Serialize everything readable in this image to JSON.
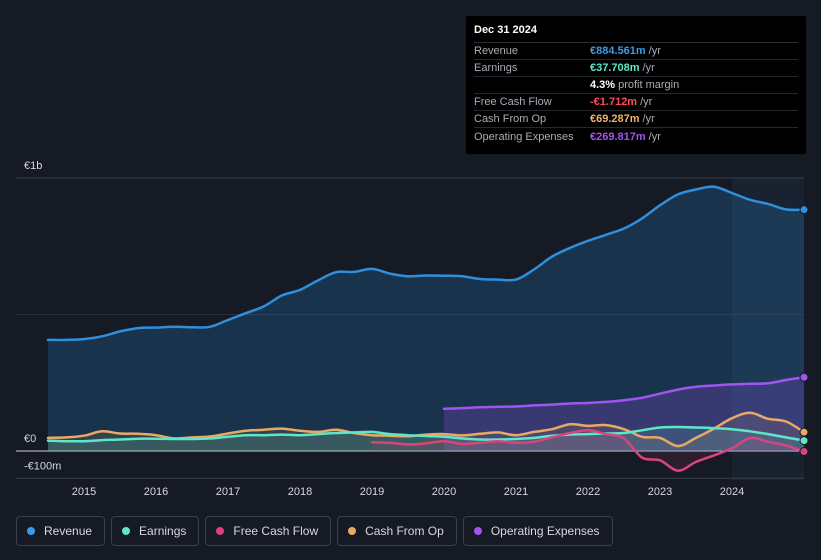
{
  "tooltip": {
    "date": "Dec 31 2024",
    "rows": [
      {
        "label": "Revenue",
        "value": "€884.561m",
        "unit": "/yr",
        "color": "#3b9be6"
      },
      {
        "label": "Earnings",
        "value": "€37.708m",
        "unit": "/yr",
        "color": "#5ee6c8"
      },
      {
        "label": "",
        "value": "4.3%",
        "unit": "profit margin",
        "color": "#ffffff"
      },
      {
        "label": "Free Cash Flow",
        "value": "-€1.712m",
        "unit": "/yr",
        "color": "#ff4a5a"
      },
      {
        "label": "Cash From Op",
        "value": "€69.287m",
        "unit": "/yr",
        "color": "#f0b46c"
      },
      {
        "label": "Operating Expenses",
        "value": "€269.817m",
        "unit": "/yr",
        "color": "#a054f0"
      }
    ]
  },
  "legend": [
    {
      "label": "Revenue",
      "color": "#3b9be6"
    },
    {
      "label": "Earnings",
      "color": "#5ee6c8"
    },
    {
      "label": "Free Cash Flow",
      "color": "#d9447f"
    },
    {
      "label": "Cash From Op",
      "color": "#e8a964"
    },
    {
      "label": "Operating Expenses",
      "color": "#a054f0"
    }
  ],
  "chart_data": {
    "type": "area",
    "title": "",
    "y_tick_labels": [
      "€1b",
      "€0",
      "-€100m"
    ],
    "y_tick_values": [
      1000,
      0,
      -100
    ],
    "ylim": [
      -100,
      1000
    ],
    "xlim": [
      2014.5,
      2025.0
    ],
    "x_ticks": [
      2015,
      2016,
      2017,
      2018,
      2019,
      2020,
      2021,
      2022,
      2023,
      2024
    ],
    "x_tick_labels": [
      "2015",
      "2016",
      "2017",
      "2018",
      "2019",
      "2020",
      "2021",
      "2022",
      "2023",
      "2024"
    ],
    "highlight_from": 2024.0,
    "series": [
      {
        "name": "Revenue",
        "color": "#2f8fdc",
        "x": [
          2014.5,
          2014.75,
          2015.0,
          2015.25,
          2015.5,
          2015.75,
          2016.0,
          2016.25,
          2016.5,
          2016.75,
          2017.0,
          2017.25,
          2017.5,
          2017.75,
          2018.0,
          2018.25,
          2018.5,
          2018.75,
          2019.0,
          2019.25,
          2019.5,
          2019.75,
          2020.0,
          2020.25,
          2020.5,
          2020.75,
          2021.0,
          2021.25,
          2021.5,
          2021.75,
          2022.0,
          2022.25,
          2022.5,
          2022.75,
          2023.0,
          2023.25,
          2023.5,
          2023.75,
          2024.0,
          2024.25,
          2024.5,
          2024.75,
          2025.0
        ],
        "values": [
          407,
          407,
          410,
          420,
          438,
          450,
          452,
          455,
          453,
          455,
          480,
          505,
          530,
          570,
          590,
          625,
          655,
          656,
          667,
          650,
          640,
          643,
          642,
          640,
          630,
          628,
          628,
          665,
          712,
          744,
          770,
          792,
          815,
          852,
          900,
          940,
          958,
          968,
          945,
          920,
          905,
          885,
          884
        ]
      },
      {
        "name": "Operating Expenses",
        "color": "#a054f0",
        "x": [
          2020.0,
          2020.25,
          2020.5,
          2020.75,
          2021.0,
          2021.25,
          2021.5,
          2021.75,
          2022.0,
          2022.25,
          2022.5,
          2022.75,
          2023.0,
          2023.25,
          2023.5,
          2023.75,
          2024.0,
          2024.25,
          2024.5,
          2024.75,
          2025.0
        ],
        "values": [
          155,
          157,
          160,
          162,
          163,
          167,
          170,
          174,
          176,
          180,
          186,
          195,
          210,
          225,
          235,
          240,
          244,
          246,
          248,
          260,
          270
        ]
      },
      {
        "name": "Cash From Op",
        "color": "#e8a964",
        "x": [
          2014.5,
          2014.75,
          2015.0,
          2015.25,
          2015.5,
          2015.75,
          2016.0,
          2016.25,
          2016.5,
          2016.75,
          2017.0,
          2017.25,
          2017.5,
          2017.75,
          2018.0,
          2018.25,
          2018.5,
          2018.75,
          2019.0,
          2019.25,
          2019.5,
          2019.75,
          2020.0,
          2020.25,
          2020.5,
          2020.75,
          2021.0,
          2021.25,
          2021.5,
          2021.75,
          2022.0,
          2022.25,
          2022.5,
          2022.75,
          2023.0,
          2023.25,
          2023.5,
          2023.75,
          2024.0,
          2024.25,
          2024.5,
          2024.75,
          2025.0
        ],
        "values": [
          48,
          50,
          56,
          72,
          64,
          63,
          58,
          46,
          50,
          53,
          64,
          74,
          78,
          82,
          74,
          70,
          78,
          66,
          58,
          56,
          54,
          60,
          62,
          57,
          63,
          68,
          58,
          70,
          80,
          98,
          92,
          95,
          80,
          52,
          48,
          18,
          48,
          82,
          120,
          140,
          118,
          108,
          69
        ]
      },
      {
        "name": "Earnings",
        "color": "#5ee6c8",
        "x": [
          2014.5,
          2014.75,
          2015.0,
          2015.25,
          2015.5,
          2015.75,
          2016.0,
          2016.25,
          2016.5,
          2016.75,
          2017.0,
          2017.25,
          2017.5,
          2017.75,
          2018.0,
          2018.25,
          2018.5,
          2018.75,
          2019.0,
          2019.25,
          2019.5,
          2019.75,
          2020.0,
          2020.25,
          2020.5,
          2020.75,
          2021.0,
          2021.25,
          2021.5,
          2021.75,
          2022.0,
          2022.25,
          2022.5,
          2022.75,
          2023.0,
          2023.25,
          2023.5,
          2023.75,
          2024.0,
          2024.25,
          2024.5,
          2024.75,
          2025.0
        ],
        "values": [
          38,
          36,
          36,
          40,
          42,
          45,
          45,
          44,
          44,
          46,
          52,
          58,
          58,
          60,
          58,
          62,
          66,
          68,
          70,
          62,
          58,
          55,
          52,
          46,
          42,
          42,
          44,
          48,
          56,
          60,
          62,
          64,
          66,
          76,
          86,
          88,
          86,
          84,
          80,
          72,
          62,
          50,
          38
        ]
      },
      {
        "name": "Free Cash Flow",
        "color": "#d9447f",
        "x": [
          2019.0,
          2019.25,
          2019.5,
          2019.75,
          2020.0,
          2020.25,
          2020.5,
          2020.75,
          2021.0,
          2021.25,
          2021.5,
          2021.75,
          2022.0,
          2022.25,
          2022.5,
          2022.75,
          2023.0,
          2023.25,
          2023.5,
          2023.75,
          2024.0,
          2024.25,
          2024.5,
          2024.75,
          2025.0
        ],
        "values": [
          32,
          30,
          24,
          28,
          36,
          26,
          30,
          36,
          30,
          34,
          50,
          66,
          76,
          62,
          46,
          -24,
          -34,
          -72,
          -40,
          -16,
          10,
          48,
          34,
          20,
          -2
        ]
      }
    ]
  }
}
